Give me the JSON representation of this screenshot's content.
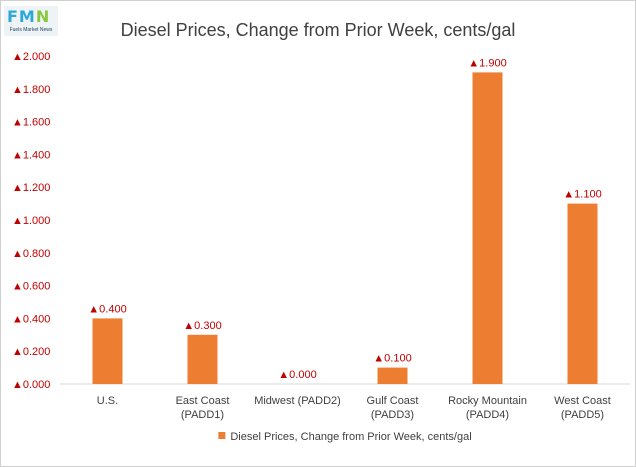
{
  "logo": {
    "mark_left": "FM",
    "mark_right": "N",
    "tagline": "Fuels Market News"
  },
  "colors": {
    "bar": "#ed7d31",
    "negative_text": "#c00000",
    "axis": "#d9d9d9",
    "text": "#404040"
  },
  "chart_data": {
    "type": "bar",
    "title": "Diesel Prices, Change from Prior Week, cents/gal",
    "categories": [
      [
        "U.S."
      ],
      [
        "East Coast",
        "(PADD1)"
      ],
      [
        "Midwest (PADD2)"
      ],
      [
        "Gulf Coast",
        "(PADD3)"
      ],
      [
        "Rocky Mountain",
        "(PADD4)"
      ],
      [
        "West Coast",
        "(PADD5)"
      ]
    ],
    "series": [
      {
        "name": "Diesel Prices, Change from Prior Week, cents/gal",
        "values": [
          0.4,
          0.3,
          0.0,
          0.1,
          1.9,
          1.1
        ]
      }
    ],
    "data_labels": [
      "▲0.400",
      "▲0.300",
      "▲0.000",
      "▲0.100",
      "▲1.900",
      "▲1.100"
    ],
    "ylim": [
      0,
      2.0
    ],
    "yticks": [
      0.0,
      0.2,
      0.4,
      0.6,
      0.8,
      1.0,
      1.2,
      1.4,
      1.6,
      1.8,
      2.0
    ],
    "ytick_labels": [
      "▲0.000",
      "▲0.200",
      "▲0.400",
      "▲0.600",
      "▲0.800",
      "▲1.000",
      "▲1.200",
      "▲1.400",
      "▲1.600",
      "▲1.800",
      "▲2.000"
    ],
    "grid": false,
    "legend": "bottom",
    "xlabel": "",
    "ylabel": ""
  }
}
